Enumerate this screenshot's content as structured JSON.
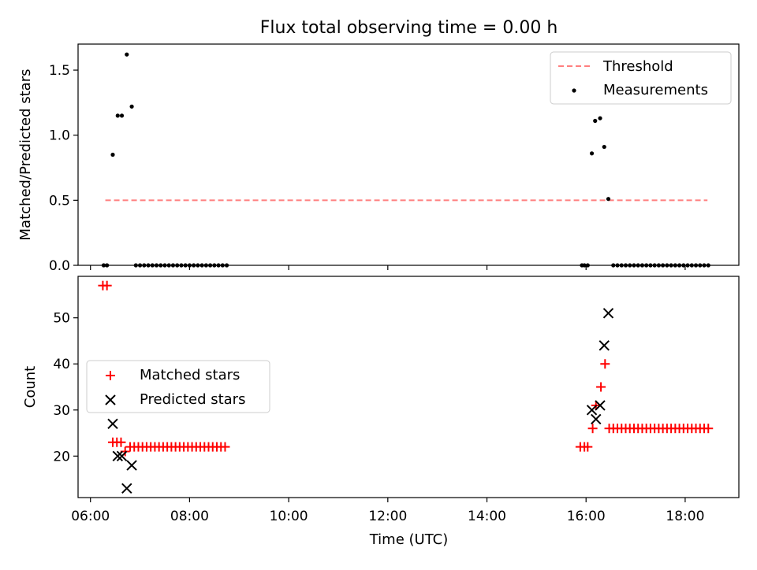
{
  "chart_data": [
    {
      "type": "scatter",
      "title": "Flux total observing time = 0.00 h",
      "ylabel": "Matched/Predicted stars",
      "xlim": [
        "05:45",
        "19:05"
      ],
      "ylim": [
        0,
        1.7
      ],
      "yticks": [
        "0.0",
        "0.5",
        "1.0",
        "1.5"
      ],
      "legend": {
        "placement": "top-right",
        "entries": [
          "Threshold",
          "Measurements"
        ]
      },
      "threshold": {
        "name": "Threshold",
        "value": 0.5,
        "x_start": "06:18",
        "x_end": "18:27",
        "color": "#ff7f7f",
        "style": "dashed"
      },
      "series": [
        {
          "name": "Measurements",
          "color": "#000000",
          "marker": "dot",
          "points": [
            [
              "06:16",
              0.0
            ],
            [
              "06:20",
              0.0
            ],
            [
              "06:27",
              0.85
            ],
            [
              "06:33",
              1.15
            ],
            [
              "06:38",
              1.15
            ],
            [
              "06:44",
              1.62
            ],
            [
              "06:50",
              1.22
            ],
            [
              "06:55",
              0.0
            ],
            [
              "07:00",
              0.0
            ],
            [
              "07:05",
              0.0
            ],
            [
              "07:10",
              0.0
            ],
            [
              "07:15",
              0.0
            ],
            [
              "07:20",
              0.0
            ],
            [
              "07:25",
              0.0
            ],
            [
              "07:30",
              0.0
            ],
            [
              "07:35",
              0.0
            ],
            [
              "07:40",
              0.0
            ],
            [
              "07:45",
              0.0
            ],
            [
              "07:50",
              0.0
            ],
            [
              "07:55",
              0.0
            ],
            [
              "08:00",
              0.0
            ],
            [
              "08:05",
              0.0
            ],
            [
              "08:10",
              0.0
            ],
            [
              "08:15",
              0.0
            ],
            [
              "08:20",
              0.0
            ],
            [
              "08:25",
              0.0
            ],
            [
              "08:30",
              0.0
            ],
            [
              "08:35",
              0.0
            ],
            [
              "08:40",
              0.0
            ],
            [
              "08:45",
              0.0
            ],
            [
              "15:55",
              0.0
            ],
            [
              "15:58",
              0.0
            ],
            [
              "16:02",
              0.0
            ],
            [
              "16:07",
              0.86
            ],
            [
              "16:11",
              1.11
            ],
            [
              "16:17",
              1.13
            ],
            [
              "16:22",
              0.91
            ],
            [
              "16:27",
              0.51
            ],
            [
              "16:33",
              0.0
            ],
            [
              "16:38",
              0.0
            ],
            [
              "16:43",
              0.0
            ],
            [
              "16:48",
              0.0
            ],
            [
              "16:53",
              0.0
            ],
            [
              "16:58",
              0.0
            ],
            [
              "17:03",
              0.0
            ],
            [
              "17:08",
              0.0
            ],
            [
              "17:13",
              0.0
            ],
            [
              "17:18",
              0.0
            ],
            [
              "17:23",
              0.0
            ],
            [
              "17:28",
              0.0
            ],
            [
              "17:33",
              0.0
            ],
            [
              "17:38",
              0.0
            ],
            [
              "17:43",
              0.0
            ],
            [
              "17:48",
              0.0
            ],
            [
              "17:53",
              0.0
            ],
            [
              "17:58",
              0.0
            ],
            [
              "18:03",
              0.0
            ],
            [
              "18:08",
              0.0
            ],
            [
              "18:13",
              0.0
            ],
            [
              "18:18",
              0.0
            ],
            [
              "18:23",
              0.0
            ],
            [
              "18:28",
              0.0
            ]
          ]
        }
      ]
    },
    {
      "type": "scatter",
      "xlabel": "Time (UTC)",
      "ylabel": "Count",
      "xlim": [
        "05:45",
        "19:05"
      ],
      "ylim": [
        11,
        59
      ],
      "xticks": [
        "06:00",
        "08:00",
        "10:00",
        "12:00",
        "14:00",
        "16:00",
        "18:00"
      ],
      "yticks": [
        "20",
        "30",
        "40",
        "50"
      ],
      "legend": {
        "placement": "center-left",
        "entries": [
          "Matched stars",
          "Predicted stars"
        ]
      },
      "series": [
        {
          "name": "Matched stars",
          "color": "#ff0000",
          "marker": "plus",
          "points": [
            [
              "06:15",
              57
            ],
            [
              "06:20",
              57
            ],
            [
              "06:27",
              23
            ],
            [
              "06:32",
              23
            ],
            [
              "06:37",
              23
            ],
            [
              "06:42",
              21
            ],
            [
              "06:48",
              22
            ],
            [
              "06:53",
              22
            ],
            [
              "06:58",
              22
            ],
            [
              "07:03",
              22
            ],
            [
              "07:08",
              22
            ],
            [
              "07:13",
              22
            ],
            [
              "07:18",
              22
            ],
            [
              "07:23",
              22
            ],
            [
              "07:28",
              22
            ],
            [
              "07:33",
              22
            ],
            [
              "07:38",
              22
            ],
            [
              "07:43",
              22
            ],
            [
              "07:48",
              22
            ],
            [
              "07:53",
              22
            ],
            [
              "07:58",
              22
            ],
            [
              "08:03",
              22
            ],
            [
              "08:08",
              22
            ],
            [
              "08:13",
              22
            ],
            [
              "08:18",
              22
            ],
            [
              "08:23",
              22
            ],
            [
              "08:28",
              22
            ],
            [
              "08:33",
              22
            ],
            [
              "08:38",
              22
            ],
            [
              "08:43",
              22
            ],
            [
              "15:53",
              22
            ],
            [
              "15:58",
              22
            ],
            [
              "16:02",
              22
            ],
            [
              "16:08",
              26
            ],
            [
              "16:12",
              31
            ],
            [
              "16:18",
              35
            ],
            [
              "16:23",
              40
            ],
            [
              "16:28",
              26
            ],
            [
              "16:33",
              26
            ],
            [
              "16:38",
              26
            ],
            [
              "16:43",
              26
            ],
            [
              "16:48",
              26
            ],
            [
              "16:53",
              26
            ],
            [
              "16:58",
              26
            ],
            [
              "17:03",
              26
            ],
            [
              "17:08",
              26
            ],
            [
              "17:13",
              26
            ],
            [
              "17:18",
              26
            ],
            [
              "17:23",
              26
            ],
            [
              "17:28",
              26
            ],
            [
              "17:33",
              26
            ],
            [
              "17:38",
              26
            ],
            [
              "17:43",
              26
            ],
            [
              "17:48",
              26
            ],
            [
              "17:53",
              26
            ],
            [
              "17:58",
              26
            ],
            [
              "18:03",
              26
            ],
            [
              "18:08",
              26
            ],
            [
              "18:13",
              26
            ],
            [
              "18:18",
              26
            ],
            [
              "18:23",
              26
            ],
            [
              "18:28",
              26
            ]
          ]
        },
        {
          "name": "Predicted stars",
          "color": "#000000",
          "marker": "x",
          "points": [
            [
              "06:27",
              27
            ],
            [
              "06:33",
              20
            ],
            [
              "06:38",
              20
            ],
            [
              "06:44",
              13
            ],
            [
              "06:50",
              18
            ],
            [
              "16:07",
              30
            ],
            [
              "16:12",
              28
            ],
            [
              "16:17",
              31
            ],
            [
              "16:22",
              44
            ],
            [
              "16:27",
              51
            ]
          ]
        }
      ]
    }
  ]
}
